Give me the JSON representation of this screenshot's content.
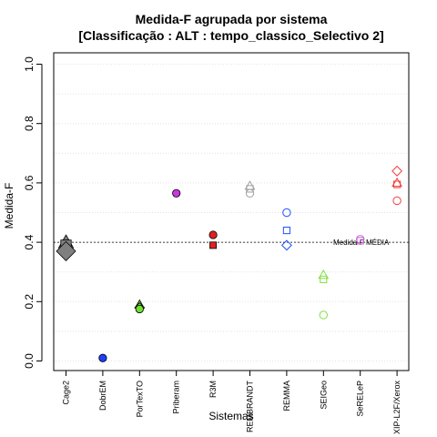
{
  "chart_data": {
    "type": "scatter",
    "title": "Medida-F agrupada por sistema",
    "subtitle": "[Classificação : ALT : tempo_classico_Selectivo 2]",
    "xlabel": "Sistemas",
    "ylabel": "Medida-F",
    "ylim": [
      0.0,
      1.0
    ],
    "yticks": [
      "0.0",
      "0.2",
      "0.4",
      "0.6",
      "0.8",
      "1.0"
    ],
    "grid": true,
    "categories": [
      "Cage2",
      "DobrEM",
      "PorTexTO",
      "Priberam",
      "R3M",
      "REMBRANDT",
      "REMMA",
      "SEIGeo",
      "SeRELeP",
      "XIP-L2F/Xerox"
    ],
    "reference_line": {
      "label": "Medida-F MÉDIA",
      "value": 0.4
    },
    "series": [
      {
        "category": "Cage2",
        "color": "#7f7f7f",
        "points": [
          {
            "y": 0.4,
            "shape": "triangle",
            "filled": true,
            "size": 1.6
          },
          {
            "y": 0.39,
            "shape": "square",
            "filled": true,
            "size": 1.6
          },
          {
            "y": 0.37,
            "shape": "diamond",
            "filled": true,
            "size": 2.0
          }
        ]
      },
      {
        "category": "DobrEM",
        "color": "#1f3fff",
        "points": [
          {
            "y": 0.01,
            "shape": "circle",
            "filled": true,
            "size": 1.0
          }
        ]
      },
      {
        "category": "PorTexTO",
        "color": "#6fe030",
        "points": [
          {
            "y": 0.19,
            "shape": "triangle",
            "filled": true,
            "size": 1.0
          },
          {
            "y": 0.18,
            "shape": "diamond",
            "filled": true,
            "size": 1.0
          },
          {
            "y": 0.175,
            "shape": "circle",
            "filled": true,
            "size": 1.0
          }
        ]
      },
      {
        "category": "Priberam",
        "color": "#c837e0",
        "points": [
          {
            "y": 0.565,
            "shape": "circle",
            "filled": true,
            "size": 1.0
          }
        ]
      },
      {
        "category": "R3M",
        "color": "#e02020",
        "points": [
          {
            "y": 0.425,
            "shape": "circle",
            "filled": true,
            "size": 1.0
          },
          {
            "y": 0.39,
            "shape": "square",
            "filled": true,
            "size": 1.0
          }
        ]
      },
      {
        "category": "REMBRANDT",
        "color": "#a0a0a0",
        "points": [
          {
            "y": 0.59,
            "shape": "triangle",
            "filled": false,
            "size": 1.0
          },
          {
            "y": 0.58,
            "shape": "square",
            "filled": false,
            "size": 1.0
          },
          {
            "y": 0.565,
            "shape": "circle",
            "filled": false,
            "size": 1.0
          }
        ]
      },
      {
        "category": "REMMA",
        "color": "#2050ff",
        "points": [
          {
            "y": 0.5,
            "shape": "circle",
            "filled": false,
            "size": 1.0
          },
          {
            "y": 0.44,
            "shape": "square",
            "filled": false,
            "size": 1.0
          },
          {
            "y": 0.39,
            "shape": "diamond",
            "filled": false,
            "size": 1.0
          }
        ]
      },
      {
        "category": "SEIGeo",
        "color": "#80e040",
        "points": [
          {
            "y": 0.29,
            "shape": "triangle",
            "filled": false,
            "size": 1.0
          },
          {
            "y": 0.275,
            "shape": "square",
            "filled": false,
            "size": 1.0
          },
          {
            "y": 0.155,
            "shape": "circle",
            "filled": false,
            "size": 1.0
          }
        ]
      },
      {
        "category": "SeRELeP",
        "color": "#d060e0",
        "points": [
          {
            "y": 0.41,
            "shape": "circle",
            "filled": false,
            "size": 1.0
          },
          {
            "y": 0.405,
            "shape": "square",
            "filled": false,
            "size": 1.0
          }
        ]
      },
      {
        "category": "XIP-L2F/Xerox",
        "color": "#f04040",
        "points": [
          {
            "y": 0.64,
            "shape": "diamond",
            "filled": false,
            "size": 1.0
          },
          {
            "y": 0.6,
            "shape": "triangle",
            "filled": false,
            "size": 1.0
          },
          {
            "y": 0.595,
            "shape": "square",
            "filled": false,
            "size": 1.0
          },
          {
            "y": 0.54,
            "shape": "circle",
            "filled": false,
            "size": 1.0
          }
        ]
      }
    ]
  }
}
